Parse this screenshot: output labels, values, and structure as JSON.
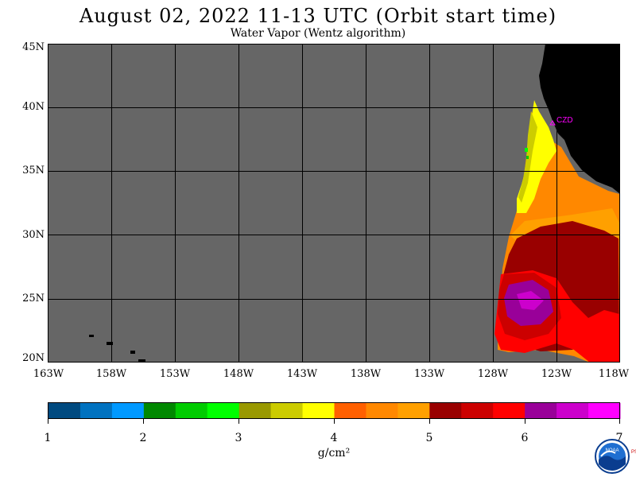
{
  "title": "August 02, 2022  11-13 UTC  (Orbit start time)",
  "subtitle": "Water Vapor (Wentz algorithm)",
  "lat_labels": [
    "45N",
    "40N",
    "35N",
    "30N",
    "25N",
    "20N"
  ],
  "lon_labels": [
    "163W",
    "158W",
    "153W",
    "148W",
    "143W",
    "138W",
    "133W",
    "128W",
    "123W",
    "118W"
  ],
  "station_label": "CZD",
  "colorbar": {
    "tick_labels": [
      "1",
      "2",
      "3",
      "4",
      "5",
      "6",
      "7"
    ],
    "units_label": "g/cm²",
    "colors": [
      "#004a80",
      "#0072c0",
      "#0099ff",
      "#008800",
      "#00cc00",
      "#00ff00",
      "#999900",
      "#cccc00",
      "#ffff00",
      "#ff6000",
      "#ff8800",
      "#ffa000",
      "#990000",
      "#cc0000",
      "#ff0000",
      "#990099",
      "#cc00cc",
      "#ff00ff"
    ]
  },
  "map_colors": {
    "no_data": "#666666",
    "land": "#000000",
    "grid": "#000000"
  },
  "logo": {
    "name": "NOAA",
    "side_text": "PSL"
  }
}
